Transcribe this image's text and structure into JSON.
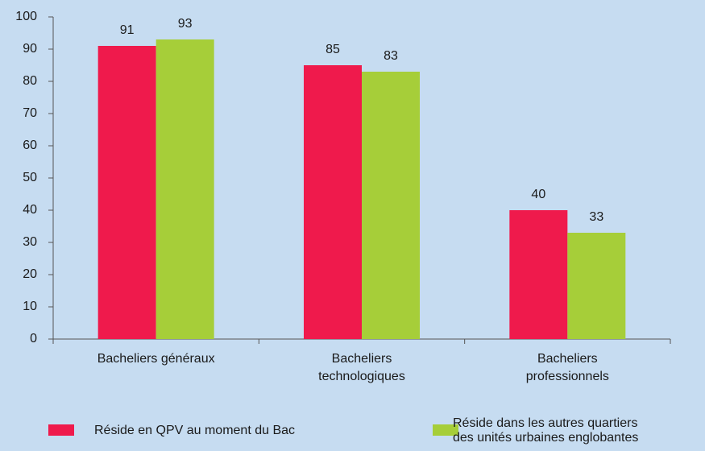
{
  "chart_data": {
    "type": "bar",
    "categories": [
      "Bacheliers généraux",
      "Bacheliers\ntechnologiques",
      "Bacheliers\nprofessionnels"
    ],
    "series": [
      {
        "name": "Réside en QPV au moment du Bac",
        "color": "#ef1a4c",
        "values": [
          91,
          85,
          40
        ]
      },
      {
        "name": "Réside dans les autres quartiers\ndes unités urbaines englobantes",
        "color": "#a6ce39",
        "values": [
          93,
          83,
          33
        ]
      }
    ],
    "ylim": [
      0,
      100
    ],
    "yticks": [
      0,
      10,
      20,
      30,
      40,
      50,
      60,
      70,
      80,
      90,
      100
    ],
    "legend": "bottom"
  }
}
